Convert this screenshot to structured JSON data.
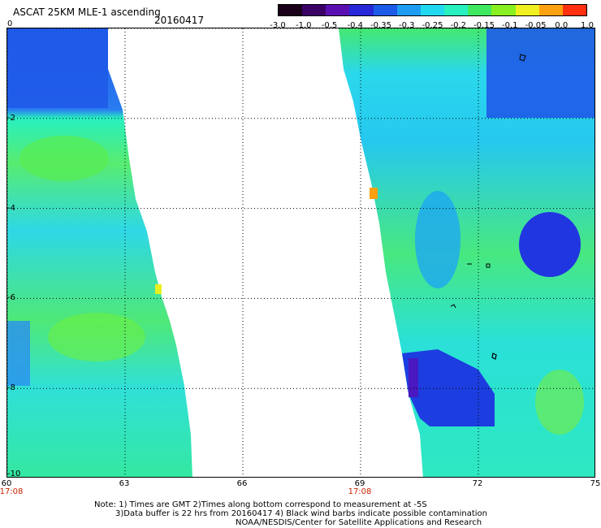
{
  "header": {
    "title": "ASCAT 25KM MLE-1 ascending",
    "date": "20160417"
  },
  "colorbar": {
    "labels": [
      "-3.0",
      "-1.0",
      "-0.5",
      "-0.4",
      "-0.35",
      "-0.3",
      "-0.25",
      "-0.2",
      "-0.15",
      "-0.1",
      "-0.05",
      "0.0",
      "1.0"
    ],
    "colors": [
      "#1a0018",
      "#3a0066",
      "#5a10b0",
      "#2828d8",
      "#1c5ae8",
      "#1e9cf2",
      "#22d8f0",
      "#28f0c0",
      "#40e860",
      "#88f020",
      "#f0f020",
      "#ffa010",
      "#ff3010"
    ]
  },
  "map": {
    "lon_range": [
      60,
      75
    ],
    "lat_range": [
      0,
      -10
    ],
    "x_ticks": [
      "60",
      "63",
      "66",
      "69",
      "72",
      "75"
    ],
    "y_ticks": [
      "0",
      "-2",
      "-4",
      "-6",
      "-8",
      "-10"
    ],
    "times": [
      {
        "label": "17:08",
        "lon": 60
      },
      {
        "label": "17:08",
        "lon": 69
      }
    ]
  },
  "notes": {
    "line1": "Note: 1) Times are GMT 2)Times along bottom correspond to measurement at -5S",
    "line2": "3)Data buffer is 22 hrs from 20160417 4) Black wind barbs indicate possible contamination",
    "line3": "NOAA/NESDIS/Center for Satellite Applications and Research"
  }
}
